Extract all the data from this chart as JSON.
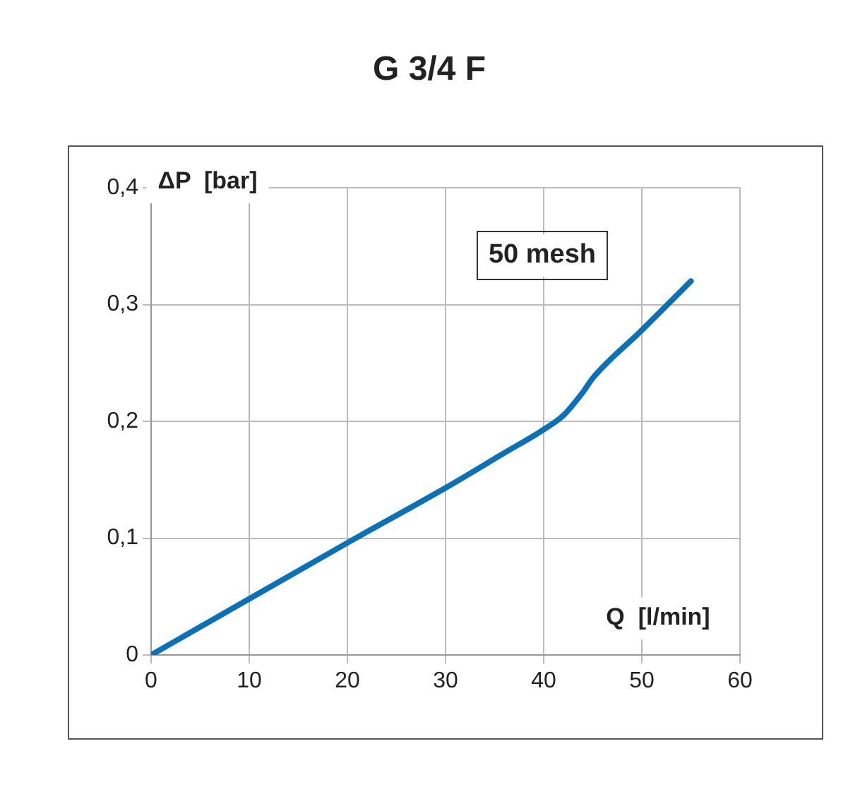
{
  "chart_data": {
    "type": "line",
    "title": "G 3/4 F",
    "xlabel": "Q  [l/min]",
    "ylabel": "ΔP  [bar]",
    "x": [
      0,
      10,
      20,
      30,
      36,
      40,
      42,
      44,
      45,
      50,
      55
    ],
    "series": [
      {
        "color": "#0a70b8",
        "values": [
          0,
          0.048,
          0.096,
          0.143,
          0.173,
          0.193,
          0.205,
          0.225,
          0.237,
          0.278,
          0.32
        ]
      }
    ],
    "xlim": [
      0,
      60
    ],
    "xticks": [
      0,
      10,
      20,
      30,
      40,
      50,
      60
    ],
    "ylim": [
      0,
      0.4
    ],
    "yticks": [
      {
        "value": 0,
        "label": "0"
      },
      {
        "value": 0.1,
        "label": "0,1"
      },
      {
        "value": 0.2,
        "label": "0,2"
      },
      {
        "value": 0.3,
        "label": "0,3"
      },
      {
        "value": 0.4,
        "label": "0,4"
      }
    ],
    "annotations": [
      "50 mesh"
    ],
    "grid": true,
    "legend": false,
    "marker": "none",
    "line_style": "solid"
  }
}
